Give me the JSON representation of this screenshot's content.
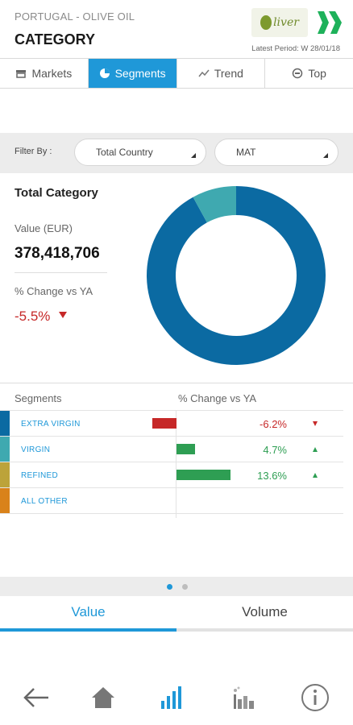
{
  "header": {
    "subtitle": "PORTUGAL - OLIVE OIL",
    "title": "CATEGORY",
    "brand_logo_text": "liver",
    "latest_period": "Latest Period: W 28/01/18"
  },
  "tabs": [
    {
      "label": "Markets",
      "icon": "store-icon"
    },
    {
      "label": "Segments",
      "icon": "pie-icon",
      "active": true
    },
    {
      "label": "Trend",
      "icon": "trend-icon"
    },
    {
      "label": "Top",
      "icon": "top-icon"
    }
  ],
  "filters": {
    "label": "Filter By :",
    "country": "Total Country",
    "period": "MAT"
  },
  "summary": {
    "title": "Total Category",
    "value_label": "Value (EUR)",
    "value": "378,418,706",
    "change_label": "% Change vs YA",
    "change": "-5.5%"
  },
  "chart_data": {
    "type": "pie",
    "categories": [
      "EXTRA VIRGIN",
      "VIRGIN",
      "REFINED",
      "ALL OTHER"
    ],
    "values": [
      92,
      8,
      0,
      0
    ],
    "colors": [
      "#0b6aa2",
      "#3fa9b0",
      "#bca33a",
      "#d9821a"
    ]
  },
  "segments": {
    "header_left": "Segments",
    "header_right": "% Change vs YA",
    "rows": [
      {
        "name": "EXTRA VIRGIN",
        "change": "-6.2%",
        "change_value": -6.2,
        "direction": "down",
        "color": "#0b6aa2"
      },
      {
        "name": "VIRGIN",
        "change": "4.7%",
        "change_value": 4.7,
        "direction": "up",
        "color": "#3fa9b0"
      },
      {
        "name": "REFINED",
        "change": "13.6%",
        "change_value": 13.6,
        "direction": "up",
        "color": "#bca33a"
      },
      {
        "name": "ALL OTHER",
        "change": "",
        "change_value": null,
        "direction": "",
        "color": "#d9821a"
      }
    ]
  },
  "measure_toggle": {
    "value_label": "Value",
    "volume_label": "Volume",
    "active": "Value"
  },
  "bottom_nav": [
    "back-arrow-icon",
    "home-icon",
    "bar-chart-icon",
    "factory-chart-icon",
    "info-icon"
  ],
  "colors": {
    "accent": "#1f98d8",
    "negative": "#c62828",
    "positive": "#2e9e53"
  }
}
